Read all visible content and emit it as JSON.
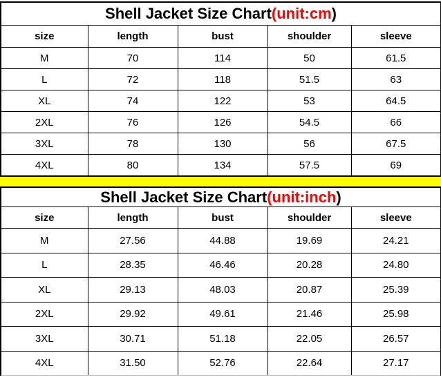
{
  "colors": {
    "accent_red": "#ff0000",
    "divider_yellow": "#ffff00",
    "border_black": "#000000",
    "bottom_gridline_gray": "#bfbfbf"
  },
  "chart_data": [
    {
      "type": "table",
      "title": "Shell Jacket Size Chart(unit:cm)",
      "title_prefix": "Shell Jacket Size Chart",
      "title_unit_red": "(unit:cm",
      "title_suffix": ")",
      "unit": "cm",
      "columns": [
        "size",
        "length",
        "bust",
        "shoulder",
        "sleeve"
      ],
      "rows": [
        [
          "M",
          "70",
          "114",
          "50",
          "61.5"
        ],
        [
          "L",
          "72",
          "118",
          "51.5",
          "63"
        ],
        [
          "XL",
          "74",
          "122",
          "53",
          "64.5"
        ],
        [
          "2XL",
          "76",
          "126",
          "54.5",
          "66"
        ],
        [
          "3XL",
          "78",
          "130",
          "56",
          "67.5"
        ],
        [
          "4XL",
          "80",
          "134",
          "57.5",
          "69"
        ]
      ]
    },
    {
      "type": "table",
      "title": "Shell Jacket Size Chart(unit:inch)",
      "title_prefix": "Shell Jacket Size Chart",
      "title_unit_red": "(unit:inch",
      "title_suffix": ")",
      "unit": "inch",
      "columns": [
        "size",
        "length",
        "bust",
        "shoulder",
        "sleeve"
      ],
      "rows": [
        [
          "M",
          "27.56",
          "44.88",
          "19.69",
          "24.21"
        ],
        [
          "L",
          "28.35",
          "46.46",
          "20.28",
          "24.80"
        ],
        [
          "XL",
          "29.13",
          "48.03",
          "20.87",
          "25.39"
        ],
        [
          "2XL",
          "29.92",
          "49.61",
          "21.46",
          "25.98"
        ],
        [
          "3XL",
          "30.71",
          "51.18",
          "22.05",
          "26.57"
        ],
        [
          "4XL",
          "31.50",
          "52.76",
          "22.64",
          "27.17"
        ]
      ]
    }
  ]
}
